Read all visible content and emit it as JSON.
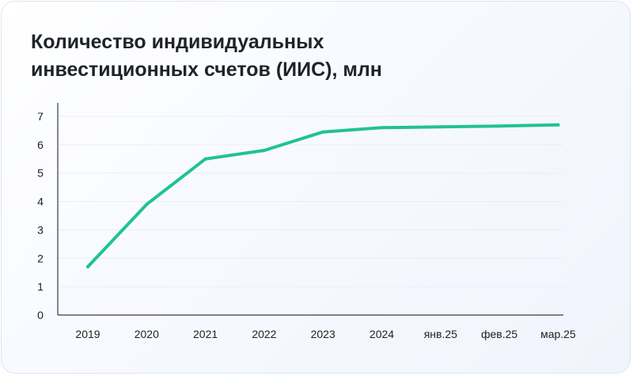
{
  "chart_data": {
    "type": "line",
    "title_lines": [
      "Количество индивидуальных",
      "инвестиционных счетов (ИИС), млн"
    ],
    "categories": [
      "2019",
      "2020",
      "2021",
      "2022",
      "2023",
      "2024",
      "янв.25",
      "фев.25",
      "мар.25"
    ],
    "series": [
      {
        "values": [
          1.7,
          3.9,
          5.5,
          5.8,
          6.45,
          6.6,
          6.63,
          6.66,
          6.7
        ]
      }
    ],
    "ylim": [
      0,
      7
    ],
    "yticks": [
      "0",
      "1",
      "2",
      "3",
      "4",
      "5",
      "6",
      "7"
    ],
    "grid": true,
    "colors": {
      "line": "#1fc393",
      "grid": "#e9edf3",
      "axis": "#3a3a3a"
    }
  }
}
